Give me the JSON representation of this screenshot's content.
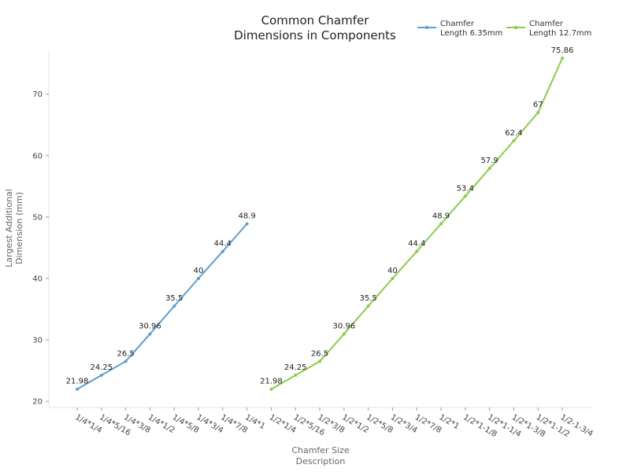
{
  "chart_data": {
    "type": "line",
    "title": [
      "Common Chamfer",
      "Dimensions in Components"
    ],
    "xlabel": [
      "Chamfer Size",
      "Description"
    ],
    "ylabel": [
      "Largest Additional",
      "Dimension (mm)"
    ],
    "ylim": [
      19,
      77
    ],
    "yticks": [
      20,
      30,
      40,
      50,
      60,
      70
    ],
    "grid": false,
    "legend_position": "top-right",
    "categories": [
      "1/4*1/4",
      "1/4*5/16",
      "1/4*3/8",
      "1/4*1/2",
      "1/4*5/8",
      "1/4*3/4",
      "1/4*7/8",
      "1/4*1",
      "1/2*1/4",
      "1/2*5/16",
      "1/2*3/8",
      "1/2*1/2",
      "1/2*5/8",
      "1/2*3/4",
      "1/2*7/8",
      "1/2*1",
      "1/2*1-1/8",
      "1/2*1-1/4",
      "1/2*1-3/8",
      "1/2*1-1/2",
      "1/2-1-3/4"
    ],
    "series": [
      {
        "name": [
          "Chamfer",
          "Length 6.35mm"
        ],
        "color": "#5b9fd4",
        "x": [
          "1/4*1/4",
          "1/4*5/16",
          "1/4*3/8",
          "1/4*1/2",
          "1/4*5/8",
          "1/4*3/4",
          "1/4*7/8",
          "1/4*1"
        ],
        "values": [
          21.98,
          24.25,
          26.5,
          30.96,
          35.5,
          40,
          44.4,
          48.9
        ],
        "labels": [
          "21.98",
          "24.25",
          "26.5",
          "30.96",
          "35.5",
          "40",
          "44.4",
          "48.9"
        ]
      },
      {
        "name": [
          "Chamfer",
          "Length 12.7mm"
        ],
        "color": "#8acd4a",
        "x": [
          "1/2*1/4",
          "1/2*5/16",
          "1/2*3/8",
          "1/2*1/2",
          "1/2*5/8",
          "1/2*3/4",
          "1/2*7/8",
          "1/2*1",
          "1/2*1-1/8",
          "1/2*1-1/4",
          "1/2*1-3/8",
          "1/2*1-1/2",
          "1/2-1-3/4"
        ],
        "values": [
          21.98,
          24.25,
          26.5,
          30.96,
          35.5,
          40,
          44.4,
          48.9,
          53.4,
          57.9,
          62.4,
          67,
          75.86
        ],
        "labels": [
          "21.98",
          "24.25",
          "26.5",
          "30.96",
          "35.5",
          "40",
          "44.4",
          "48.9",
          "53.4",
          "57.9",
          "62.4",
          "67",
          "75.86"
        ]
      }
    ]
  }
}
